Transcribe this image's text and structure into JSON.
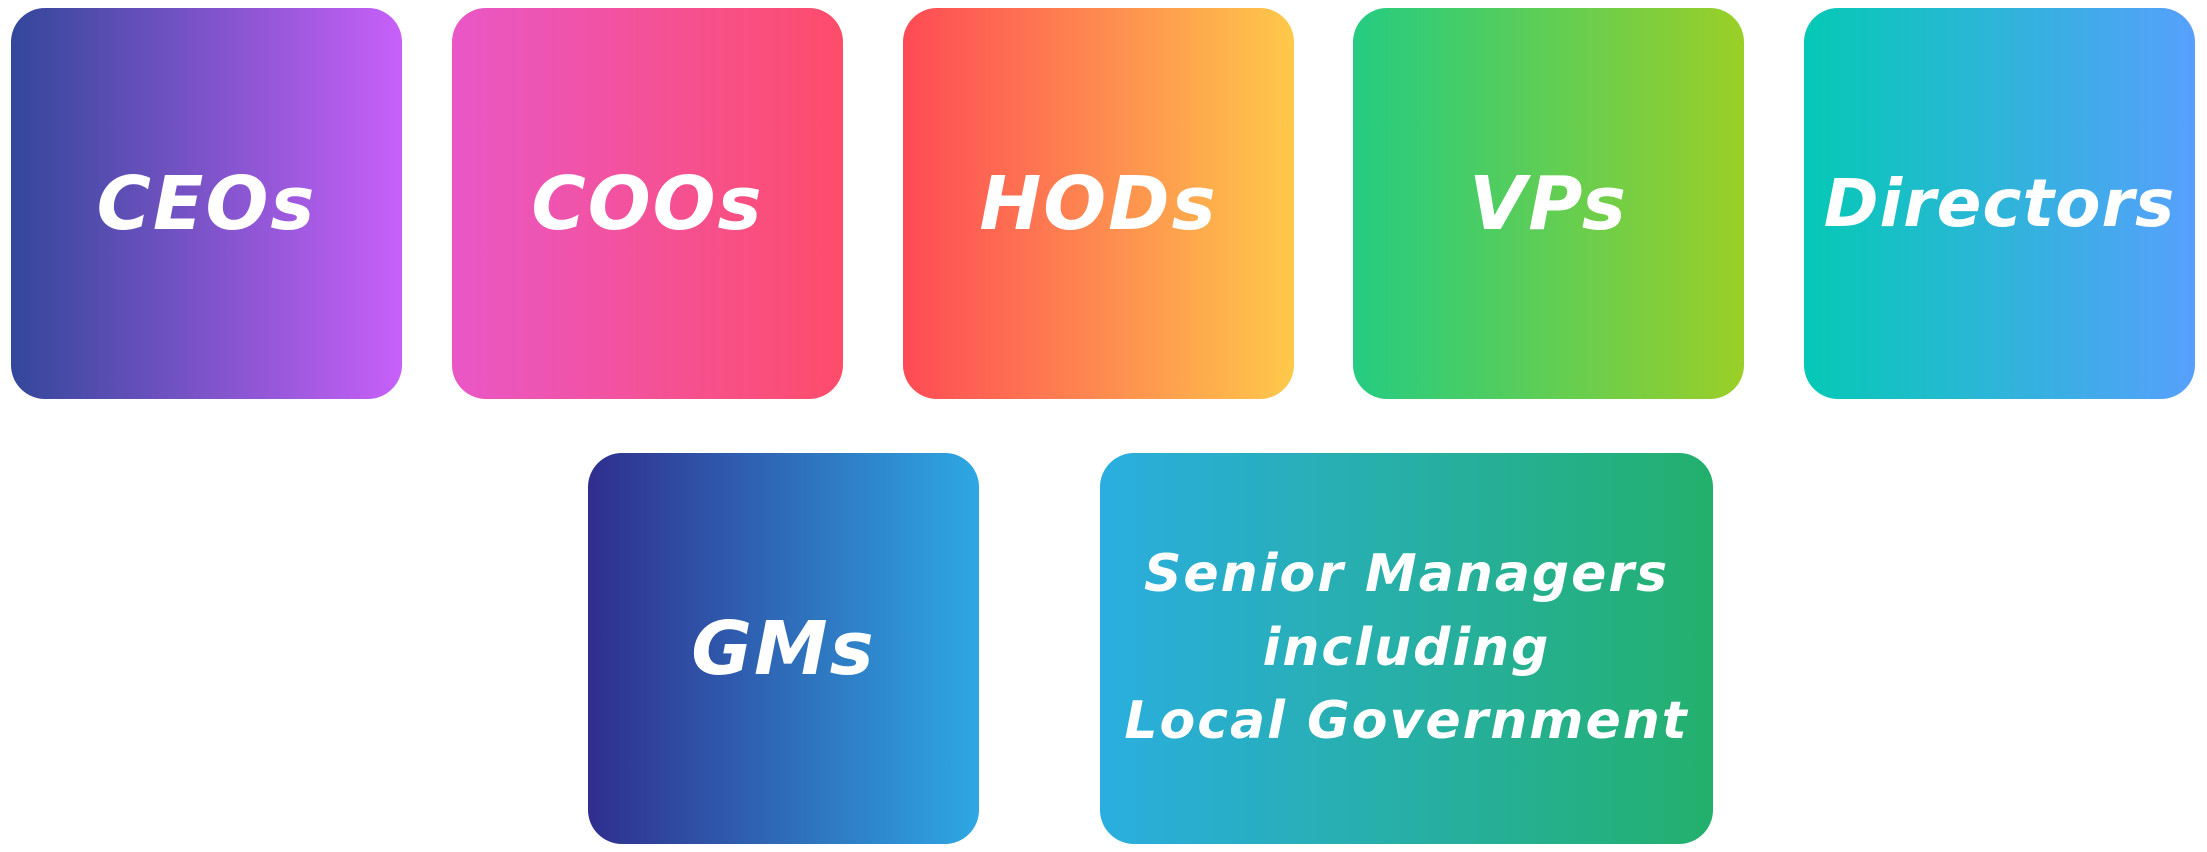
{
  "tiles": [
    {
      "label": "CEOs",
      "colors": [
        "#33479a",
        "#c860f9"
      ]
    },
    {
      "label": "COOs",
      "colors": [
        "#e957c7",
        "#fe4c6a"
      ]
    },
    {
      "label": "HODs",
      "colors": [
        "#fe4a55",
        "#fec94a"
      ]
    },
    {
      "label": "VPs",
      "colors": [
        "#24cc82",
        "#9bcf27"
      ]
    },
    {
      "label": "Directors",
      "colors": [
        "#05c9b5",
        "#57a0fd"
      ]
    },
    {
      "label": "GMs",
      "colors": [
        "#2f2e8e",
        "#2ea8e3"
      ]
    },
    {
      "lines": [
        "Senior Managers",
        "including",
        "Local Government"
      ],
      "colors": [
        "#2aaee0",
        "#23b06c"
      ]
    }
  ],
  "text_color": "#ffffff"
}
